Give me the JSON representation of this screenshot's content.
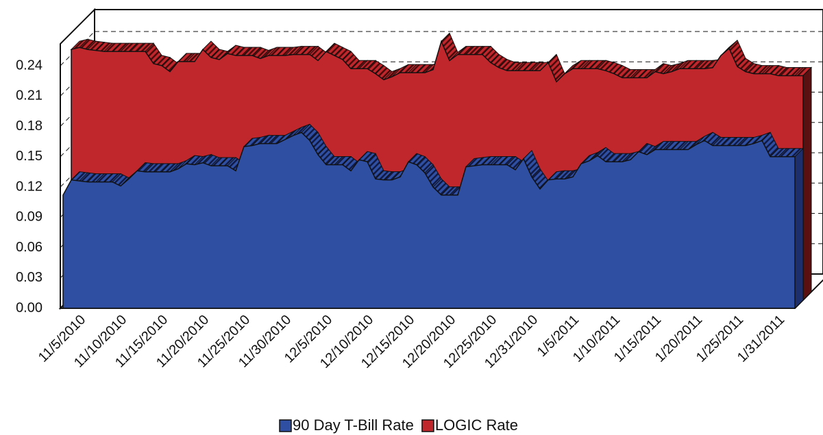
{
  "chart_data": {
    "type": "area3d",
    "categories": [
      null,
      null,
      "11/5/2010",
      null,
      null,
      null,
      null,
      "11/10/2010",
      null,
      null,
      null,
      null,
      "11/15/2010",
      null,
      null,
      null,
      null,
      "11/20/2010",
      null,
      null,
      null,
      null,
      "11/25/2010",
      null,
      null,
      null,
      null,
      "11/30/2010",
      null,
      null,
      null,
      null,
      "12/5/2010",
      null,
      null,
      null,
      null,
      "12/10/2010",
      null,
      null,
      null,
      null,
      "12/15/2010",
      null,
      null,
      null,
      null,
      "12/20/2010",
      null,
      null,
      null,
      null,
      "12/25/2010",
      null,
      null,
      null,
      null,
      "12/31/2010",
      null,
      null,
      null,
      null,
      "1/5/2011",
      null,
      null,
      null,
      null,
      "1/10/2011",
      null,
      null,
      null,
      null,
      "1/15/2011",
      null,
      null,
      null,
      null,
      "1/20/2011",
      null,
      null,
      null,
      null,
      "1/25/2011",
      null,
      null,
      null,
      null,
      "1/31/2011",
      null,
      null
    ],
    "series": [
      {
        "name": "90 Day T-Bill Rate",
        "color": "#2f4fa3",
        "values": [
          0.112,
          0.127,
          0.126,
          0.125,
          0.125,
          0.125,
          0.125,
          0.121,
          0.128,
          0.136,
          0.135,
          0.135,
          0.135,
          0.135,
          0.138,
          0.143,
          0.142,
          0.144,
          0.141,
          0.141,
          0.141,
          0.136,
          0.16,
          0.161,
          0.163,
          0.163,
          0.163,
          0.167,
          0.171,
          0.174,
          0.166,
          0.152,
          0.142,
          0.142,
          0.142,
          0.136,
          0.147,
          0.145,
          0.128,
          0.127,
          0.127,
          0.13,
          0.145,
          0.142,
          0.134,
          0.12,
          0.112,
          0.112,
          0.112,
          0.14,
          0.141,
          0.142,
          0.142,
          0.142,
          0.142,
          0.137,
          0.148,
          0.13,
          0.118,
          0.127,
          0.128,
          0.128,
          0.13,
          0.143,
          0.146,
          0.151,
          0.145,
          0.145,
          0.145,
          0.147,
          0.155,
          0.152,
          0.157,
          0.157,
          0.157,
          0.157,
          0.157,
          0.162,
          0.166,
          0.161,
          0.161,
          0.161,
          0.161,
          0.161,
          0.163,
          0.166,
          0.15,
          0.15,
          0.15,
          0.15
        ]
      },
      {
        "name": "LOGIC Rate",
        "color": "#c0272d",
        "values": [
          0.248,
          0.25,
          0.248,
          0.247,
          0.246,
          0.246,
          0.246,
          0.246,
          0.246,
          0.246,
          0.234,
          0.232,
          0.226,
          0.236,
          0.236,
          0.236,
          0.248,
          0.24,
          0.238,
          0.244,
          0.242,
          0.242,
          0.242,
          0.239,
          0.242,
          0.242,
          0.242,
          0.243,
          0.243,
          0.243,
          0.237,
          0.246,
          0.242,
          0.238,
          0.229,
          0.229,
          0.229,
          0.224,
          0.218,
          0.221,
          0.225,
          0.225,
          0.225,
          0.225,
          0.228,
          0.256,
          0.237,
          0.243,
          0.243,
          0.243,
          0.243,
          0.235,
          0.23,
          0.227,
          0.227,
          0.227,
          0.227,
          0.227,
          0.235,
          0.216,
          0.224,
          0.229,
          0.229,
          0.229,
          0.229,
          0.227,
          0.224,
          0.22,
          0.22,
          0.22,
          0.22,
          0.226,
          0.224,
          0.226,
          0.229,
          0.229,
          0.229,
          0.229,
          0.23,
          0.242,
          0.249,
          0.231,
          0.226,
          0.224,
          0.224,
          0.224,
          0.222,
          0.222,
          0.222,
          0.222
        ]
      }
    ],
    "ylim": [
      0,
      0.26
    ],
    "yticks": [
      {
        "value": 0,
        "label": "0.00"
      },
      0.03,
      0.06,
      0.09,
      0.12,
      0.15,
      0.18,
      0.21,
      0.24
    ],
    "grid": true,
    "legend": "bottom"
  }
}
